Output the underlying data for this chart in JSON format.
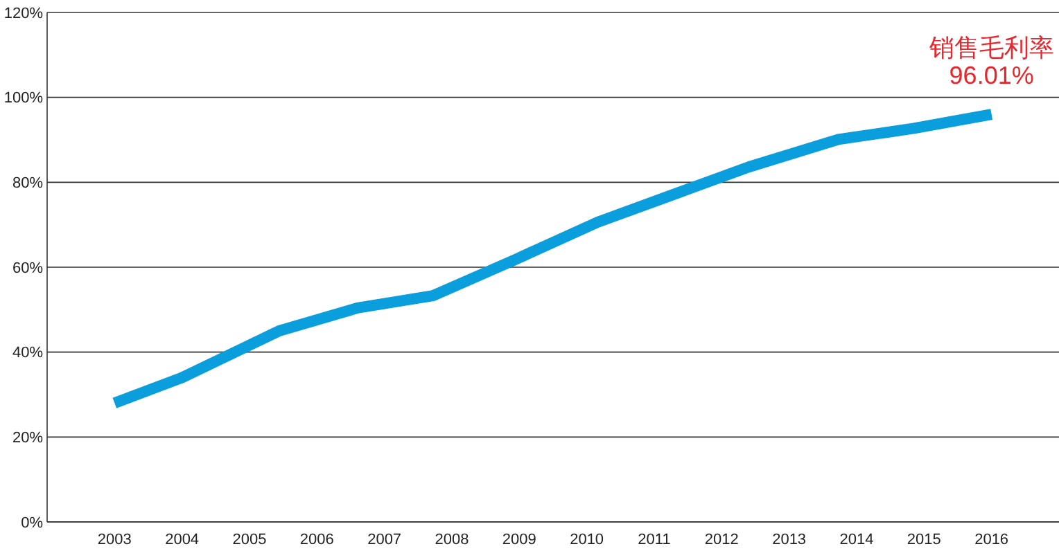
{
  "chart_data": {
    "type": "line",
    "x": [
      2003,
      2004,
      2005.44,
      2006.6,
      2007.72,
      2008.94,
      2010.16,
      2011.28,
      2012.4,
      2013.73,
      2014.85,
      2016
    ],
    "series": [
      {
        "color": "#0a9fdc",
        "values": [
          28,
          34,
          45,
          50.4,
          53.3,
          61.8,
          70.6,
          77.1,
          83.6,
          90.1,
          92.7,
          96.01
        ]
      }
    ],
    "xlim": [
      2002,
      2017
    ],
    "xticks": [
      2003,
      2004,
      2005,
      2006,
      2007,
      2008,
      2009,
      2010,
      2011,
      2012,
      2013,
      2014,
      2015,
      2016
    ],
    "ylim": [
      0,
      120
    ],
    "yticks": [
      {
        "value": 0,
        "label": "0%"
      },
      {
        "value": 20,
        "label": "20%"
      },
      {
        "value": 40,
        "label": "40%"
      },
      {
        "value": 60,
        "label": "60%"
      },
      {
        "value": 80,
        "label": "80%"
      },
      {
        "value": 100,
        "label": "100%"
      },
      {
        "value": 120,
        "label": "120%"
      }
    ],
    "grid": "y",
    "marker": "none",
    "line_style": "solid",
    "annotations": [
      {
        "text": "销售毛利率\n96.01%",
        "x": 2016,
        "y": 96.01
      }
    ]
  }
}
